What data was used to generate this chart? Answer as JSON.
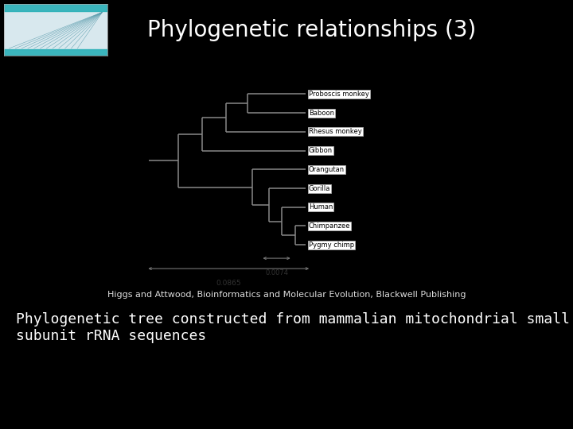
{
  "title": "Phylogenetic relationships (3)",
  "subtitle": "Higgs and Attwood, Bioinformatics and Molecular Evolution, Blackwell Publishing",
  "body_text": "Phylogenetic tree constructed from mammalian mitochondrial small\nsubunit rRNA sequences",
  "bg_color": "#000000",
  "title_color": "#ffffff",
  "body_color": "#ffffff",
  "subtitle_color": "#dddddd",
  "tree_bg": "#ffffff",
  "tree_line_color": "#888888",
  "label_color": "#000000",
  "taxa": [
    "Proboscis monkey",
    "Baboon",
    "Rhesus monkey",
    "Gibbon",
    "Orangutan",
    "Gorilla",
    "Human",
    "Chimpanzee",
    "Pygmy chimp"
  ],
  "scale_label1": "0.0865",
  "scale_label2": "0.0074",
  "title_fontsize": 20,
  "subtitle_fontsize": 8,
  "body_fontsize": 13
}
